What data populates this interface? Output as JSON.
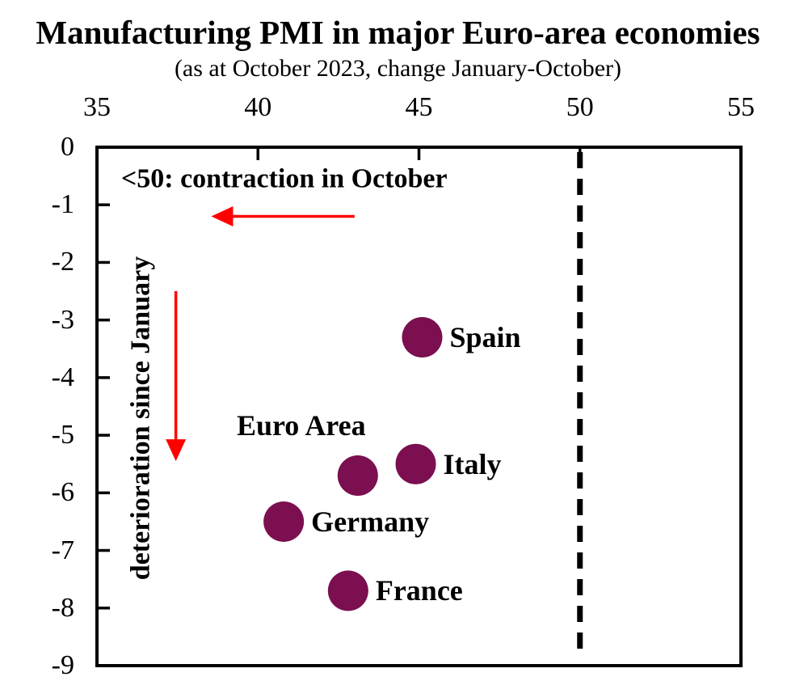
{
  "chart_data": {
    "type": "scatter",
    "title": "Manufacturing PMI in major Euro-area economies",
    "subtitle": "(as at October 2023, change January-October)",
    "x_axis": {
      "position": "top",
      "range": [
        35,
        55
      ],
      "ticks": [
        35,
        40,
        45,
        50,
        55
      ]
    },
    "y_axis": {
      "position": "left",
      "range": [
        -9,
        0
      ],
      "ticks": [
        0,
        -1,
        -2,
        -3,
        -4,
        -5,
        -6,
        -7,
        -8,
        -9
      ]
    },
    "grid": false,
    "legend": false,
    "reference_line": {
      "x": 50,
      "style": "dashed",
      "color": "#000000"
    },
    "points": [
      {
        "label": "Spain",
        "x": 45.1,
        "y": -3.3,
        "label_side": "right"
      },
      {
        "label": "Italy",
        "x": 44.9,
        "y": -5.5,
        "label_side": "right"
      },
      {
        "label": "Euro Area",
        "x": 43.1,
        "y": -5.7,
        "label_side": "above-left"
      },
      {
        "label": "Germany",
        "x": 40.8,
        "y": -6.5,
        "label_side": "right"
      },
      {
        "label": "France",
        "x": 42.8,
        "y": -7.7,
        "label_side": "right"
      }
    ],
    "annotations": {
      "contraction_note": {
        "text": "<50: contraction in October",
        "x": 35.75,
        "y": -0.55
      },
      "deterioration_note": {
        "text": "deterioration since January",
        "x": 36.35,
        "y": -4.7
      },
      "left_arrow": {
        "y": -1.2,
        "x_from": 43.0,
        "x_to": 38.55
      },
      "down_arrow": {
        "x": 37.45,
        "y_from": -2.5,
        "y_to": -5.45
      }
    },
    "colors": {
      "point": "#7B0F50",
      "arrow": "#FF0000",
      "ink": "#000000"
    }
  }
}
